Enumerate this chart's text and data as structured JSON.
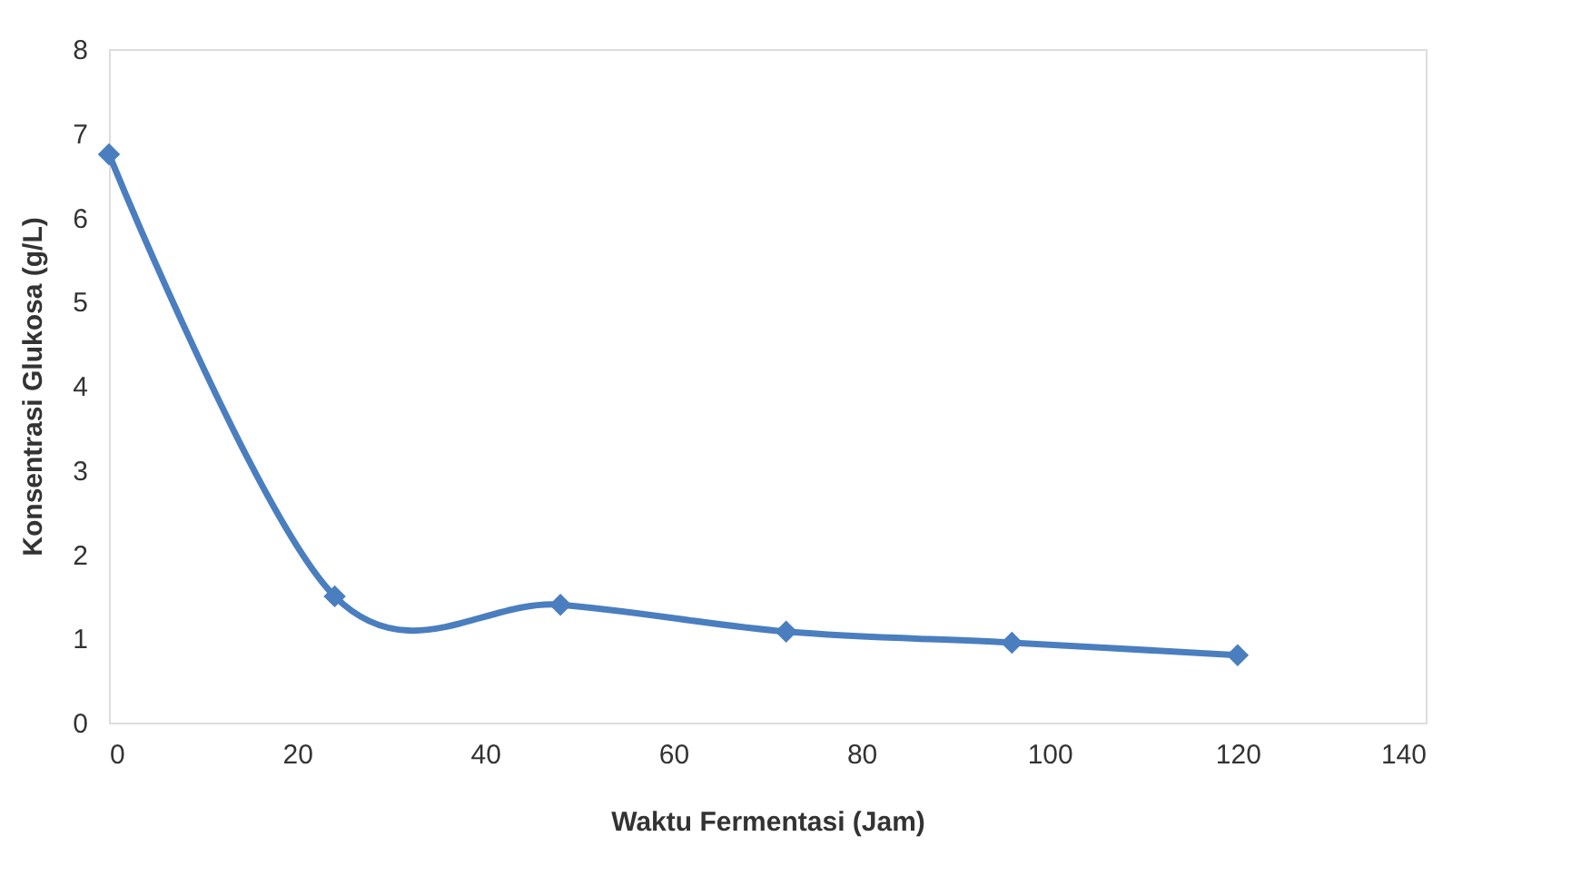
{
  "chart_data": {
    "type": "line",
    "xlabel": "Waktu Fermentasi (Jam)",
    "ylabel": "Konsentrasi Glukosa (g/L)",
    "x": [
      0,
      24,
      48,
      72,
      96,
      120
    ],
    "series": [
      {
        "color": "#4a7ebf",
        "values": [
          6.75,
          1.5,
          1.4,
          1.08,
          0.95,
          0.8
        ]
      }
    ],
    "xlim": [
      0,
      140
    ],
    "xticks": [
      0,
      20,
      40,
      60,
      80,
      100,
      120,
      140
    ],
    "ylim": [
      0,
      8
    ],
    "yticks": [
      0,
      1,
      2,
      3,
      4,
      5,
      6,
      7,
      8
    ],
    "grid": false,
    "legend": false,
    "marker": "diamond",
    "line_style": "solid"
  }
}
